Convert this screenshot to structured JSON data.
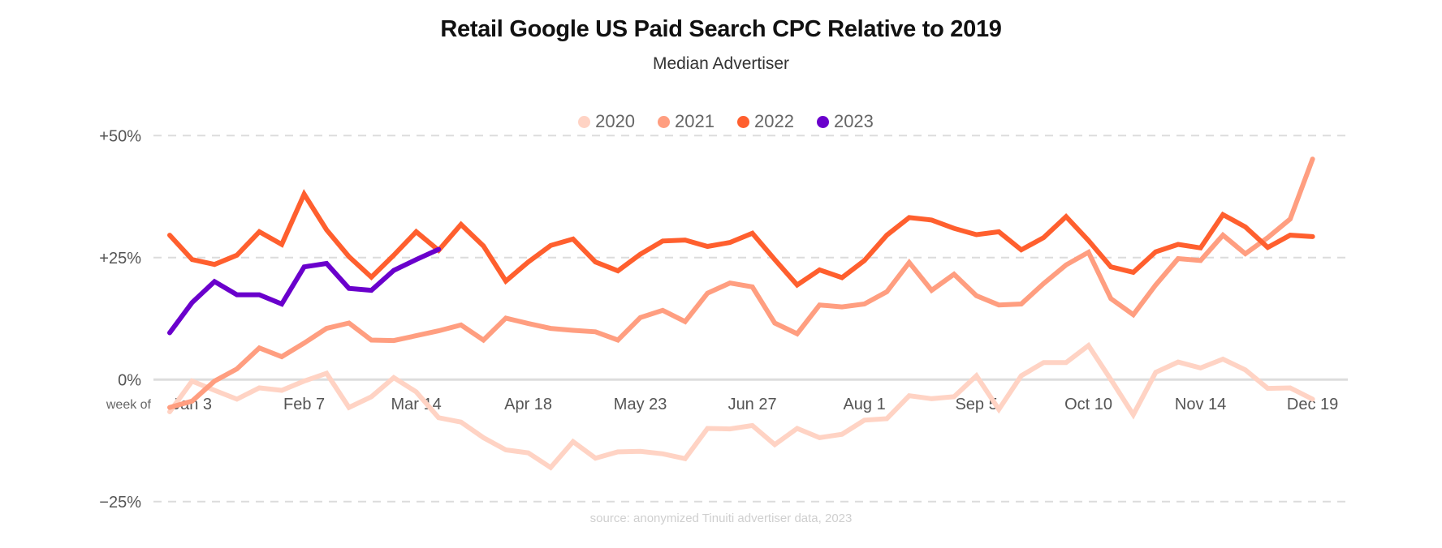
{
  "chart_data": {
    "type": "line",
    "title": "Retail Google US Paid Search CPC Relative to 2019",
    "subtitle": "Median Advertiser",
    "xlabel": "week of",
    "ylabel": "",
    "ylim": [
      -25,
      50
    ],
    "y_ticks": [
      {
        "value": 50,
        "label": "+50%"
      },
      {
        "value": 25,
        "label": "+25%"
      },
      {
        "value": 0,
        "label": "0%"
      },
      {
        "value": -25,
        "label": "−25%"
      }
    ],
    "x_ticks": [
      {
        "index": 1,
        "label": "Jan 3"
      },
      {
        "index": 6,
        "label": "Feb 7"
      },
      {
        "index": 11,
        "label": "Mar 14"
      },
      {
        "index": 16,
        "label": "Apr 18"
      },
      {
        "index": 21,
        "label": "May 23"
      },
      {
        "index": 26,
        "label": "Jun 27"
      },
      {
        "index": 31,
        "label": "Aug 1"
      },
      {
        "index": 36,
        "label": "Sep 5"
      },
      {
        "index": 41,
        "label": "Oct 10"
      },
      {
        "index": 46,
        "label": "Nov 14"
      },
      {
        "index": 51,
        "label": "Dec 19"
      }
    ],
    "x_count": 52,
    "grid": true,
    "legend_position": "top-center",
    "series": [
      {
        "name": "2020",
        "color": "#FFD3C4",
        "values": [
          -6.6,
          -0.3,
          -2.2,
          -4.0,
          -1.7,
          -2.2,
          -0.3,
          1.3,
          -5.7,
          -3.5,
          0.4,
          -2.5,
          -7.8,
          -8.7,
          -11.9,
          -14.4,
          -15.0,
          -18.0,
          -12.7,
          -16.1,
          -14.8,
          -14.7,
          -15.2,
          -16.2,
          -10.0,
          -10.1,
          -9.4,
          -13.3,
          -10.0,
          -11.9,
          -11.2,
          -8.3,
          -8.0,
          -3.3,
          -3.9,
          -3.5,
          0.8,
          -6.1,
          0.8,
          3.5,
          3.5,
          7.0,
          0.0,
          -7.2,
          1.5,
          3.6,
          2.4,
          4.2,
          2.0,
          -1.8,
          -1.7,
          -4.0
        ]
      },
      {
        "name": "2021",
        "color": "#FF9E80",
        "values": [
          -5.7,
          -4.4,
          -0.3,
          2.2,
          6.5,
          4.7,
          7.5,
          10.5,
          11.6,
          8.1,
          8.0,
          9.0,
          10.0,
          11.2,
          8.1,
          12.6,
          11.5,
          10.5,
          10.1,
          9.8,
          8.1,
          12.7,
          14.2,
          11.9,
          17.7,
          19.8,
          19.0,
          11.6,
          9.4,
          15.3,
          14.9,
          15.5,
          18.0,
          24.0,
          18.3,
          21.6,
          17.2,
          15.3,
          15.5,
          19.7,
          23.5,
          26.1,
          16.6,
          13.3,
          19.4,
          24.8,
          24.4,
          29.6,
          25.8,
          29.1,
          32.9,
          45.2
        ]
      },
      {
        "name": "2022",
        "color": "#FF5F2E",
        "values": [
          29.6,
          24.6,
          23.6,
          25.5,
          30.3,
          27.7,
          38.0,
          30.7,
          25.2,
          21.0,
          25.5,
          30.3,
          26.5,
          31.8,
          27.4,
          20.2,
          24.1,
          27.5,
          28.8,
          24.1,
          22.3,
          25.7,
          28.4,
          28.6,
          27.3,
          28.1,
          30.0,
          24.6,
          19.4,
          22.5,
          20.9,
          24.4,
          29.6,
          33.2,
          32.7,
          31.0,
          29.7,
          30.3,
          26.6,
          29.1,
          33.4,
          28.5,
          23.1,
          22.0,
          26.2,
          27.7,
          27.0,
          33.8,
          31.3,
          27.1,
          29.6,
          29.3
        ]
      },
      {
        "name": "2023",
        "color": "#6A00CC",
        "values": [
          9.6,
          15.8,
          20.1,
          17.4,
          17.4,
          15.5,
          23.1,
          23.8,
          18.7,
          18.3,
          22.4,
          24.6,
          26.7
        ]
      }
    ],
    "source": "source: anonymized Tinuiti advertiser data, 2023"
  }
}
